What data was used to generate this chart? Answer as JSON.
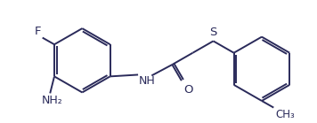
{
  "bg_color": "#ffffff",
  "line_color": "#2a2a5a",
  "font_size": 8.5,
  "line_width": 1.4,
  "fig_width": 3.56,
  "fig_height": 1.39,
  "dpi": 100,
  "xlim": [
    0,
    356
  ],
  "ylim": [
    0,
    139
  ]
}
